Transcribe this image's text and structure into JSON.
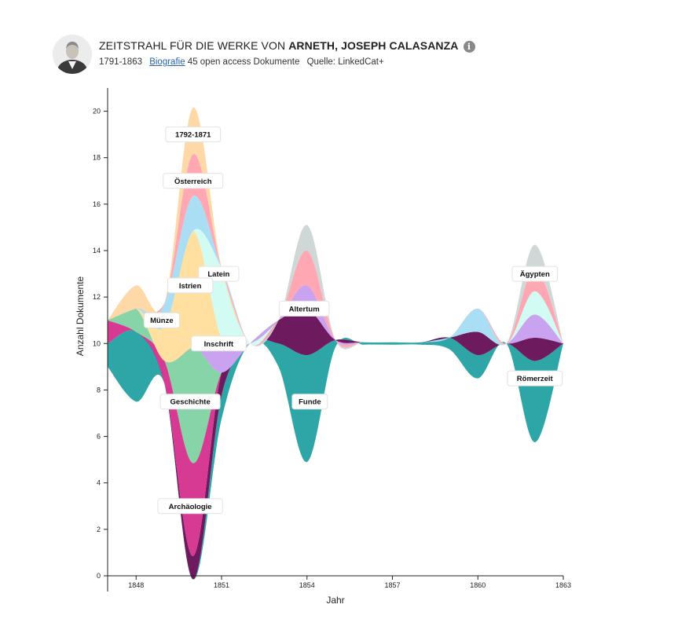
{
  "header": {
    "title_prefix": "ZEITSTRAHL FÜR DIE WERKE VON",
    "author_name": "ARNETH, JOSEPH CALASANZA",
    "info_icon": "info-icon",
    "avatar_icon": "author-portrait",
    "years": "1791-1863",
    "bio_link": "Biografie",
    "doc_count": "45 open access Dokumente",
    "source": "Quelle: LinkedCat+"
  },
  "chart_data": {
    "type": "area",
    "subtype": "streamgraph",
    "xlabel": "Jahr",
    "ylabel": "Anzahl Dokumente",
    "xlim": [
      1847,
      1863
    ],
    "ylim": [
      0,
      21
    ],
    "baseline": 10,
    "x_ticks": [
      1848,
      1851,
      1854,
      1857,
      1860,
      1863
    ],
    "y_ticks": [
      0,
      2,
      4,
      6,
      8,
      10,
      12,
      14,
      16,
      18,
      20
    ],
    "grid": false,
    "x": [
      1847,
      1848,
      1849,
      1850,
      1851,
      1852,
      1853,
      1854,
      1855,
      1856,
      1857,
      1858,
      1859,
      1860,
      1861,
      1862,
      1863
    ],
    "series": [
      {
        "name": "Funde",
        "color": "#2ea6a8",
        "values": [
          1,
          3,
          0,
          0,
          1,
          0,
          1,
          4.6,
          0.3,
          0.1,
          0.1,
          0.1,
          0.5,
          1,
          0,
          3.5,
          0
        ]
      },
      {
        "name": "Römerzeit",
        "color": "#6e1a5e",
        "values": [
          0,
          0,
          0,
          1,
          1,
          0,
          1,
          2,
          0,
          0,
          0,
          0,
          0,
          1,
          0,
          1,
          0
        ]
      },
      {
        "name": "Archäologie",
        "color": "#d63a93",
        "values": [
          1,
          0,
          1,
          4,
          0,
          0,
          0,
          0,
          0,
          0,
          0,
          0,
          0,
          0,
          0,
          0,
          0
        ]
      },
      {
        "name": "Geschichte",
        "color": "#86d4a8",
        "values": [
          0,
          1,
          0,
          5,
          0,
          0,
          0,
          0,
          0,
          0,
          0,
          0,
          0,
          0,
          0,
          0,
          0
        ]
      },
      {
        "name": "Inschrift",
        "color": "#c9a3f0",
        "values": [
          0,
          0,
          0,
          0,
          1.5,
          0,
          0,
          1,
          0,
          0,
          0,
          0,
          0,
          0,
          0,
          1,
          0
        ]
      },
      {
        "name": "Istrien",
        "color": "#ffe0a0",
        "values": [
          0,
          0,
          1.5,
          5,
          0,
          0,
          0,
          0,
          0,
          0,
          0,
          0,
          0,
          0,
          0,
          0,
          0
        ]
      },
      {
        "name": "Latein",
        "color": "#d2fbf3",
        "values": [
          0,
          0,
          0,
          0,
          3,
          0,
          0,
          0,
          0,
          0,
          0,
          0,
          0,
          0,
          0,
          1,
          0
        ]
      },
      {
        "name": "Münze",
        "color": "#a9def5",
        "values": [
          0,
          0,
          1,
          1.5,
          0,
          0,
          0,
          0,
          0,
          0,
          0,
          0,
          0,
          1,
          0,
          0,
          0
        ]
      },
      {
        "name": "Österreich",
        "color": "#ffa8b4",
        "values": [
          0,
          0,
          0,
          1.8,
          0,
          0,
          0,
          1.5,
          0,
          0,
          0,
          0,
          0,
          0,
          0,
          1,
          0
        ]
      },
      {
        "name": "1792-1871",
        "color": "#ffd8a8",
        "values": [
          0,
          1,
          0,
          2,
          0,
          0,
          0,
          0,
          0,
          0,
          0,
          0,
          0,
          0,
          0,
          0,
          0
        ]
      },
      {
        "name": "Altertum",
        "color": "#cfd8d6",
        "values": [
          0,
          0,
          0,
          0,
          0,
          0,
          0,
          1.1,
          0,
          0,
          0,
          0,
          0,
          0,
          0,
          1,
          0
        ]
      }
    ],
    "annotations": [
      {
        "text": "1792-1871",
        "x": 1850,
        "y": 19
      },
      {
        "text": "Österreich",
        "x": 1850,
        "y": 17
      },
      {
        "text": "Latein",
        "x": 1850.9,
        "y": 13
      },
      {
        "text": "Istrien",
        "x": 1849.9,
        "y": 12.5
      },
      {
        "text": "Münze",
        "x": 1848.9,
        "y": 11
      },
      {
        "text": "Inschrift",
        "x": 1850.9,
        "y": 10
      },
      {
        "text": "Geschichte",
        "x": 1849.9,
        "y": 7.5
      },
      {
        "text": "Archäologie",
        "x": 1849.9,
        "y": 3
      },
      {
        "text": "Altertum",
        "x": 1853.9,
        "y": 11.5
      },
      {
        "text": "Funde",
        "x": 1854.1,
        "y": 7.5
      },
      {
        "text": "Ägypten",
        "x": 1862,
        "y": 13
      },
      {
        "text": "Römerzeit",
        "x": 1862,
        "y": 8.5
      }
    ]
  }
}
